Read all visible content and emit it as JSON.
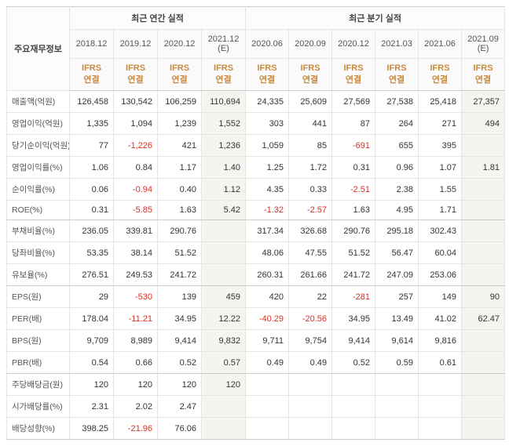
{
  "table": {
    "row_label_header": "주요재무정보",
    "group_headers": [
      "최근 연간 실적",
      "최근 분기 실적"
    ],
    "periods_annual": [
      "2018.12",
      "2019.12",
      "2020.12",
      "2021.12 (E)"
    ],
    "periods_quarter": [
      "2020.06",
      "2020.09",
      "2020.12",
      "2021.03",
      "2021.06",
      "2021.09 (E)"
    ],
    "subheader_line": "IFRS\n연결",
    "estimate_cols": [
      3,
      9
    ],
    "group_break_rows": [
      5,
      8,
      12,
      15
    ],
    "rows": [
      {
        "label": "매출액(억원)",
        "vals": [
          "126,458",
          "130,542",
          "106,259",
          "110,694",
          "24,335",
          "25,609",
          "27,569",
          "27,538",
          "25,418",
          "27,357"
        ]
      },
      {
        "label": "영업이익(억원)",
        "vals": [
          "1,335",
          "1,094",
          "1,239",
          "1,552",
          "303",
          "441",
          "87",
          "264",
          "271",
          "494"
        ]
      },
      {
        "label": "당기순이익(억원)",
        "vals": [
          "77",
          "-1,226",
          "421",
          "1,236",
          "1,059",
          "85",
          "-691",
          "655",
          "395",
          ""
        ]
      },
      {
        "label": "영업이익률(%)",
        "vals": [
          "1.06",
          "0.84",
          "1.17",
          "1.40",
          "1.25",
          "1.72",
          "0.31",
          "0.96",
          "1.07",
          "1.81"
        ]
      },
      {
        "label": "순이익률(%)",
        "vals": [
          "0.06",
          "-0.94",
          "0.40",
          "1.12",
          "4.35",
          "0.33",
          "-2.51",
          "2.38",
          "1.55",
          ""
        ]
      },
      {
        "label": "ROE(%)",
        "vals": [
          "0.31",
          "-5.85",
          "1.63",
          "5.42",
          "-1.32",
          "-2.57",
          "1.63",
          "4.95",
          "1.71",
          ""
        ]
      },
      {
        "label": "부채비율(%)",
        "vals": [
          "236.05",
          "339.81",
          "290.76",
          "",
          "317.34",
          "326.68",
          "290.76",
          "295.18",
          "302.43",
          ""
        ]
      },
      {
        "label": "당좌비율(%)",
        "vals": [
          "53.35",
          "38.14",
          "51.52",
          "",
          "48.06",
          "47.55",
          "51.52",
          "56.47",
          "60.04",
          ""
        ]
      },
      {
        "label": "유보율(%)",
        "vals": [
          "276.51",
          "249.53",
          "241.72",
          "",
          "260.31",
          "261.66",
          "241.72",
          "247.09",
          "253.06",
          ""
        ]
      },
      {
        "label": "EPS(원)",
        "vals": [
          "29",
          "-530",
          "139",
          "459",
          "420",
          "22",
          "-281",
          "257",
          "149",
          "90"
        ]
      },
      {
        "label": "PER(배)",
        "vals": [
          "178.04",
          "-11.21",
          "34.95",
          "12.22",
          "-40.29",
          "-20.56",
          "34.95",
          "13.49",
          "41.02",
          "62.47"
        ]
      },
      {
        "label": "BPS(원)",
        "vals": [
          "9,709",
          "8,989",
          "9,414",
          "9,832",
          "9,711",
          "9,754",
          "9,414",
          "9,614",
          "9,816",
          ""
        ]
      },
      {
        "label": "PBR(배)",
        "vals": [
          "0.54",
          "0.66",
          "0.52",
          "0.57",
          "0.49",
          "0.49",
          "0.52",
          "0.59",
          "0.61",
          ""
        ]
      },
      {
        "label": "주당배당금(원)",
        "vals": [
          "120",
          "120",
          "120",
          "120",
          "",
          "",
          "",
          "",
          "",
          ""
        ]
      },
      {
        "label": "시가배당률(%)",
        "vals": [
          "2.31",
          "2.02",
          "2.47",
          "",
          "",
          "",
          "",
          "",
          "",
          ""
        ]
      },
      {
        "label": "배당성향(%)",
        "vals": [
          "398.25",
          "-21.96",
          "76.06",
          "",
          "",
          "",
          "",
          "",
          "",
          ""
        ]
      }
    ],
    "colors": {
      "negative": "#d93025",
      "subheader": "#c98a3e",
      "border": "#e5e5e5",
      "estimate_bg": "#f5f5f0"
    }
  }
}
